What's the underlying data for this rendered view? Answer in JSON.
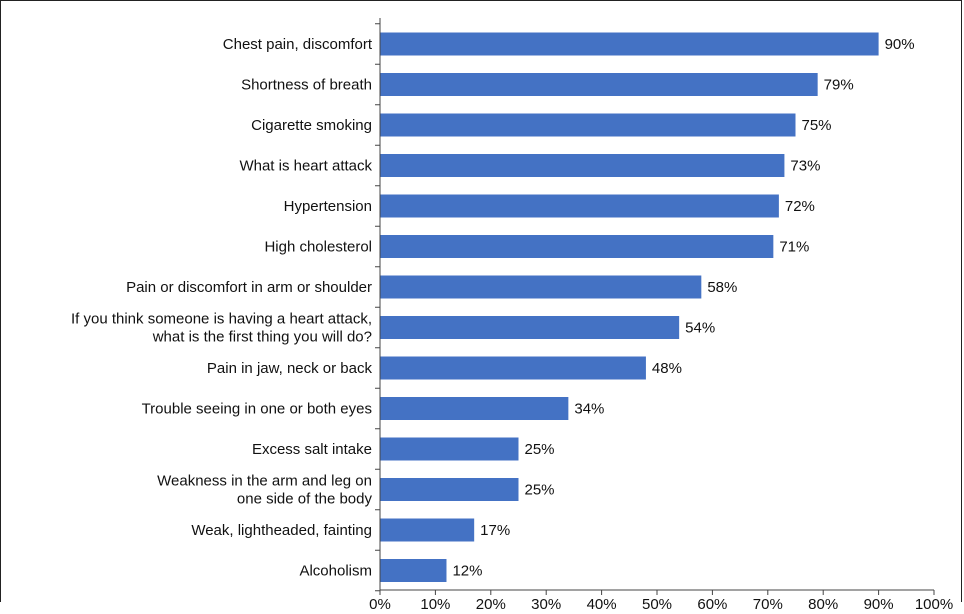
{
  "chart_data": {
    "type": "bar",
    "orientation": "horizontal",
    "title": "",
    "xlabel": "",
    "ylabel": "",
    "xlim": [
      0,
      100
    ],
    "value_unit": "%",
    "bar_color": "#4472C4",
    "grid": false,
    "legend": "none",
    "x_ticks": [
      "0%",
      "10%",
      "20%",
      "30%",
      "40%",
      "50%",
      "60%",
      "70%",
      "80%",
      "90%",
      "100%"
    ],
    "categories": [
      [
        "Chest pain, discomfort"
      ],
      [
        "Shortness of breath"
      ],
      [
        "Cigarette smoking"
      ],
      [
        "What is heart attack"
      ],
      [
        "Hypertension"
      ],
      [
        "High cholesterol"
      ],
      [
        "Pain or discomfort in arm or shoulder"
      ],
      [
        "If you think someone is having a heart attack,",
        "what is the first thing you will do?"
      ],
      [
        "Pain in jaw, neck or back"
      ],
      [
        "Trouble seeing in one or both eyes"
      ],
      [
        "Excess salt intake"
      ],
      [
        "Weakness in the arm and leg on",
        "one side of the body"
      ],
      [
        "Weak, lightheaded, fainting"
      ],
      [
        "Alcoholism"
      ]
    ],
    "values": [
      90,
      79,
      75,
      73,
      72,
      71,
      58,
      54,
      48,
      34,
      25,
      25,
      17,
      12
    ],
    "data_labels": [
      "90%",
      "79%",
      "75%",
      "73%",
      "72%",
      "71%",
      "58%",
      "54%",
      "48%",
      "34%",
      "25%",
      "25%",
      "17%",
      "12%"
    ]
  }
}
